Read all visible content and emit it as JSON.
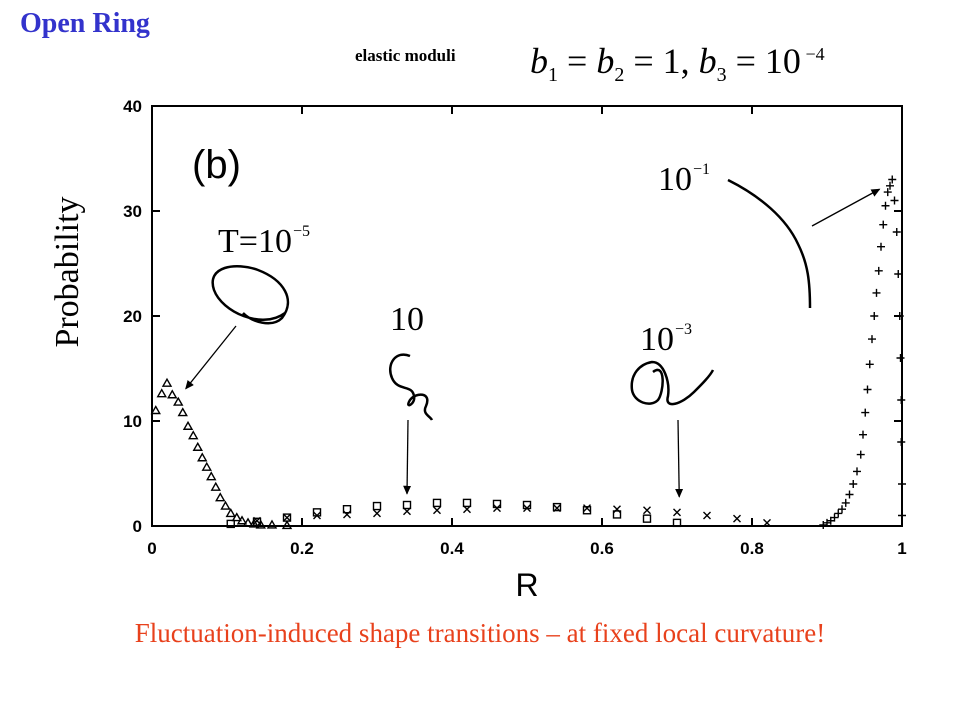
{
  "slide": {
    "title": "Open Ring",
    "moduli_label": "elastic moduli",
    "moduli_formula": {
      "b1": "b",
      "b1_sub": "1",
      "eq1": " = ",
      "b2": "b",
      "b2_sub": "2",
      "eq2": " = 1, ",
      "b3": "b",
      "b3_sub": "3",
      "eq3": " = 10",
      "exp": " −4"
    },
    "caption": "Fluctuation-induced shape transitions – at fixed local curvature!"
  },
  "chart_data": {
    "type": "scatter",
    "panel_label": "(b)",
    "xlabel": "R",
    "ylabel": "Probability",
    "xlim": [
      0,
      1
    ],
    "ylim": [
      0,
      40
    ],
    "xticks": [
      "0",
      "0.2",
      "0.4",
      "0.6",
      "0.8",
      "1"
    ],
    "yticks": [
      "0",
      "10",
      "20",
      "30",
      "40"
    ],
    "grid": false,
    "series": [
      {
        "marker": "triangle",
        "points": [
          [
            0.005,
            11.0
          ],
          [
            0.013,
            12.6
          ],
          [
            0.02,
            13.6
          ],
          [
            0.027,
            12.5
          ],
          [
            0.035,
            11.8
          ],
          [
            0.041,
            10.8
          ],
          [
            0.048,
            9.5
          ],
          [
            0.055,
            8.6
          ],
          [
            0.061,
            7.5
          ],
          [
            0.067,
            6.5
          ],
          [
            0.073,
            5.6
          ],
          [
            0.079,
            4.7
          ],
          [
            0.085,
            3.7
          ],
          [
            0.091,
            2.7
          ],
          [
            0.098,
            1.9
          ],
          [
            0.105,
            1.2
          ],
          [
            0.113,
            0.8
          ],
          [
            0.12,
            0.5
          ],
          [
            0.128,
            0.3
          ],
          [
            0.136,
            0.2
          ],
          [
            0.145,
            0.1
          ],
          [
            0.16,
            0.1
          ],
          [
            0.18,
            0.05
          ]
        ]
      },
      {
        "marker": "square",
        "points": [
          [
            0.105,
            0.2
          ],
          [
            0.14,
            0.4
          ],
          [
            0.18,
            0.8
          ],
          [
            0.22,
            1.3
          ],
          [
            0.26,
            1.6
          ],
          [
            0.3,
            1.9
          ],
          [
            0.34,
            2.0
          ],
          [
            0.38,
            2.2
          ],
          [
            0.42,
            2.2
          ],
          [
            0.46,
            2.1
          ],
          [
            0.5,
            2.0
          ],
          [
            0.54,
            1.8
          ],
          [
            0.58,
            1.5
          ],
          [
            0.62,
            1.1
          ],
          [
            0.66,
            0.7
          ],
          [
            0.7,
            0.3
          ]
        ]
      },
      {
        "marker": "cross",
        "points": [
          [
            0.14,
            0.5
          ],
          [
            0.18,
            0.8
          ],
          [
            0.22,
            1.0
          ],
          [
            0.26,
            1.1
          ],
          [
            0.3,
            1.2
          ],
          [
            0.34,
            1.4
          ],
          [
            0.38,
            1.5
          ],
          [
            0.42,
            1.6
          ],
          [
            0.46,
            1.7
          ],
          [
            0.5,
            1.7
          ],
          [
            0.54,
            1.7
          ],
          [
            0.58,
            1.7
          ],
          [
            0.62,
            1.6
          ],
          [
            0.66,
            1.5
          ],
          [
            0.7,
            1.3
          ],
          [
            0.74,
            1.0
          ],
          [
            0.78,
            0.7
          ],
          [
            0.82,
            0.3
          ]
        ]
      },
      {
        "marker": "plus",
        "points": [
          [
            0.895,
            0.1
          ],
          [
            0.9,
            0.3
          ],
          [
            0.905,
            0.5
          ],
          [
            0.91,
            0.8
          ],
          [
            0.915,
            1.2
          ],
          [
            0.92,
            1.6
          ],
          [
            0.925,
            2.2
          ],
          [
            0.93,
            3.0
          ],
          [
            0.935,
            4.0
          ],
          [
            0.94,
            5.2
          ],
          [
            0.945,
            6.8
          ],
          [
            0.948,
            8.7
          ],
          [
            0.951,
            10.8
          ],
          [
            0.954,
            13.0
          ],
          [
            0.957,
            15.4
          ],
          [
            0.96,
            17.8
          ],
          [
            0.963,
            20.0
          ],
          [
            0.966,
            22.2
          ],
          [
            0.969,
            24.3
          ],
          [
            0.972,
            26.6
          ],
          [
            0.975,
            28.7
          ],
          [
            0.978,
            30.5
          ],
          [
            0.981,
            31.8
          ],
          [
            0.984,
            32.4
          ],
          [
            0.987,
            33.0
          ],
          [
            0.99,
            31.0
          ],
          [
            0.993,
            28.0
          ],
          [
            0.995,
            24.0
          ],
          [
            0.997,
            20.0
          ],
          [
            0.998,
            16.0
          ],
          [
            0.999,
            12.0
          ],
          [
            0.999,
            8.0
          ],
          [
            1.0,
            4.0
          ],
          [
            1.0,
            1.0
          ]
        ]
      }
    ],
    "annotations": [
      {
        "base": "T=10",
        "sup": "−5",
        "target": [
          0.045,
          12.5
        ]
      },
      {
        "base": "10",
        "sup": "",
        "target": [
          0.34,
          2.5
        ]
      },
      {
        "base": "10",
        "sup": "−3",
        "target": [
          0.703,
          2.2
        ]
      },
      {
        "base": "10",
        "sup": "−1",
        "target": [
          0.97,
          31.5
        ]
      }
    ]
  }
}
